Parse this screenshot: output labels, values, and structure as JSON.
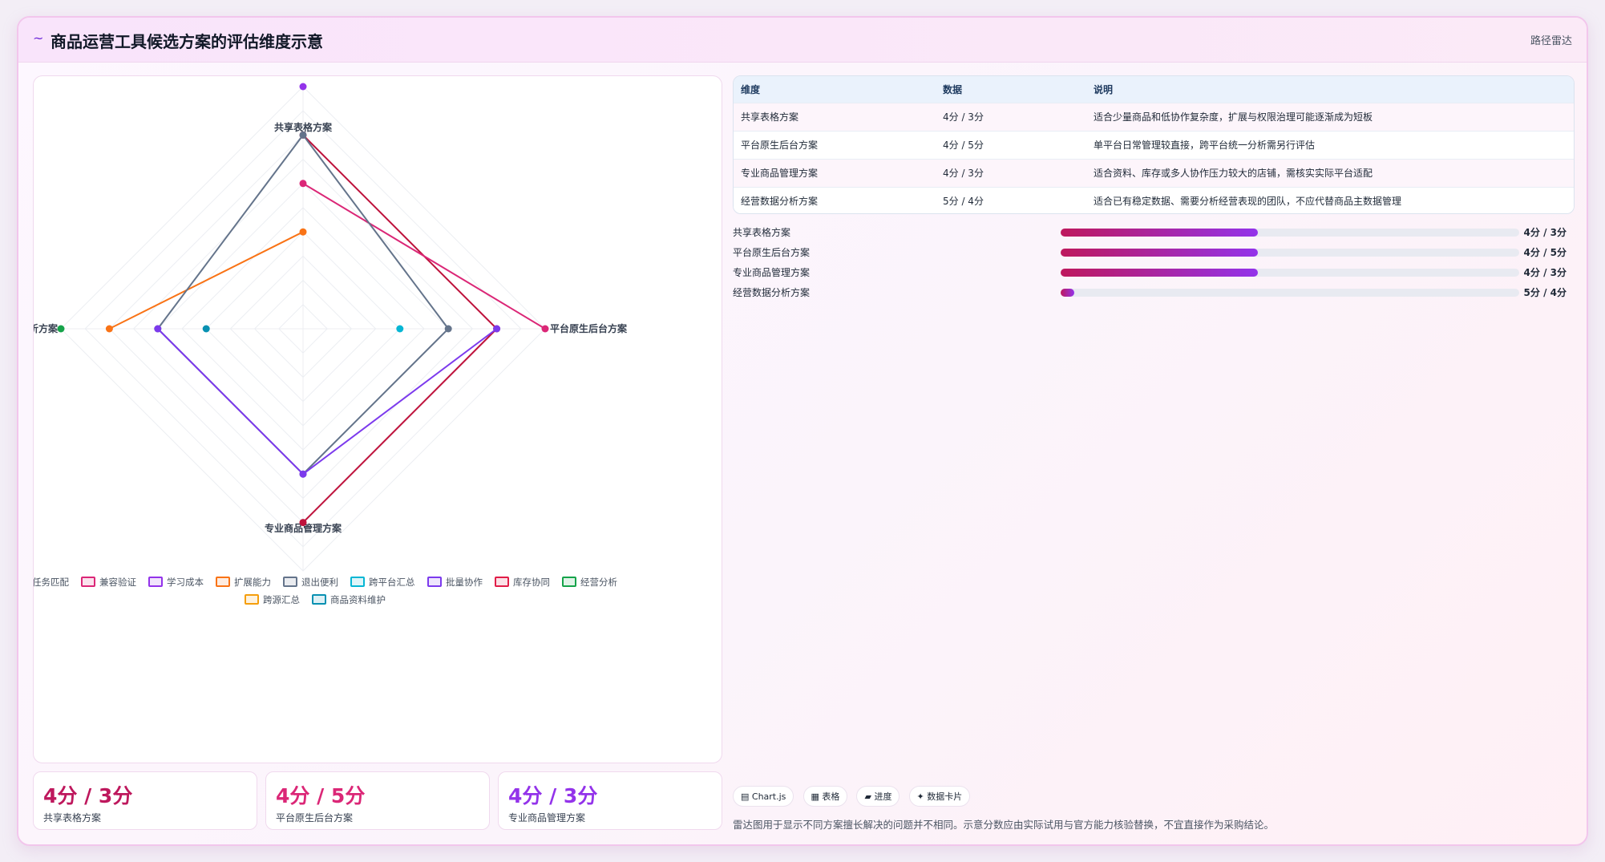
{
  "header": {
    "icon": "~",
    "title": "商品运营工具候选方案的评估维度示意",
    "right_label": "路径雷达"
  },
  "colors": {
    "crimson": "#be123c",
    "pink": "#db2777",
    "purple": "#9333ea",
    "orange": "#f97316",
    "slate": "#64748b",
    "cyan": "#06b6d4",
    "violet": "#7c3aed",
    "rose": "#e11d48",
    "green": "#16a34a",
    "amber": "#f59e0b",
    "teal": "#0891b2"
  },
  "chart_data": {
    "type": "radar",
    "axes": [
      "共享表格方案",
      "平台原生后台方案",
      "专业商品管理方案",
      "经营数据分析方案"
    ],
    "rmax": 5,
    "grid": true,
    "legend_position": "bottom",
    "series": [
      {
        "name": "任务匹配",
        "color": "#be123c",
        "values": [
          4,
          4,
          4,
          null
        ]
      },
      {
        "name": "兼容验证",
        "color": "#db2777",
        "values": [
          3,
          5,
          null,
          null
        ]
      },
      {
        "name": "学习成本",
        "color": "#9333ea",
        "values": [
          5,
          null,
          null,
          null
        ]
      },
      {
        "name": "扩展能力",
        "color": "#f97316",
        "values": [
          2,
          null,
          null,
          4
        ]
      },
      {
        "name": "退出便利",
        "color": "#64748b",
        "values": [
          4,
          3,
          3,
          3
        ]
      },
      {
        "name": "跨平台汇总",
        "color": "#06b6d4",
        "values": [
          null,
          2,
          null,
          null
        ]
      },
      {
        "name": "批量协作",
        "color": "#7c3aed",
        "values": [
          null,
          4,
          3,
          3
        ]
      },
      {
        "name": "库存协同",
        "color": "#e11d48",
        "values": [
          null,
          null,
          null,
          null
        ]
      },
      {
        "name": "经营分析",
        "color": "#16a34a",
        "values": [
          null,
          null,
          null,
          5
        ]
      },
      {
        "name": "跨源汇总",
        "color": "#f59e0b",
        "values": [
          null,
          null,
          null,
          null
        ]
      },
      {
        "name": "商品资料维护",
        "color": "#0891b2",
        "values": [
          null,
          null,
          null,
          2
        ]
      }
    ]
  },
  "metric_cards": [
    {
      "value": "4分 / 3分",
      "label": "共享表格方案",
      "color": "#be185d"
    },
    {
      "value": "4分 / 5分",
      "label": "平台原生后台方案",
      "color": "#db2777"
    },
    {
      "value": "4分 / 3分",
      "label": "专业商品管理方案",
      "color": "#9333ea"
    }
  ],
  "table": {
    "headers": [
      "维度",
      "数据",
      "说明"
    ],
    "rows": [
      [
        "共享表格方案",
        "4分 / 3分",
        "适合少量商品和低协作复杂度，扩展与权限治理可能逐渐成为短板"
      ],
      [
        "平台原生后台方案",
        "4分 / 5分",
        "单平台日常管理较直接，跨平台统一分析需另行评估"
      ],
      [
        "专业商品管理方案",
        "4分 / 3分",
        "适合资料、库存或多人协作压力较大的店铺，需核实实际平台适配"
      ],
      [
        "经营数据分析方案",
        "5分 / 4分",
        "适合已有稳定数据、需要分析经营表现的团队，不应代替商品主数据管理"
      ]
    ]
  },
  "progress": [
    {
      "label": "共享表格方案",
      "value": "4分 / 3分",
      "fraction": 0.43
    },
    {
      "label": "平台原生后台方案",
      "value": "4分 / 5分",
      "fraction": 0.43
    },
    {
      "label": "专业商品管理方案",
      "value": "4分 / 3分",
      "fraction": 0.43
    },
    {
      "label": "经营数据分析方案",
      "value": "5分 / 4分",
      "fraction": 0.03
    }
  ],
  "chips": [
    "▤ Chart.js",
    "▦ 表格",
    "▰ 进度",
    "✦ 数据卡片"
  ],
  "note": "雷达图用于显示不同方案擅长解决的问题并不相同。示意分数应由实际试用与官方能力核验替换，不宜直接作为采购结论。"
}
